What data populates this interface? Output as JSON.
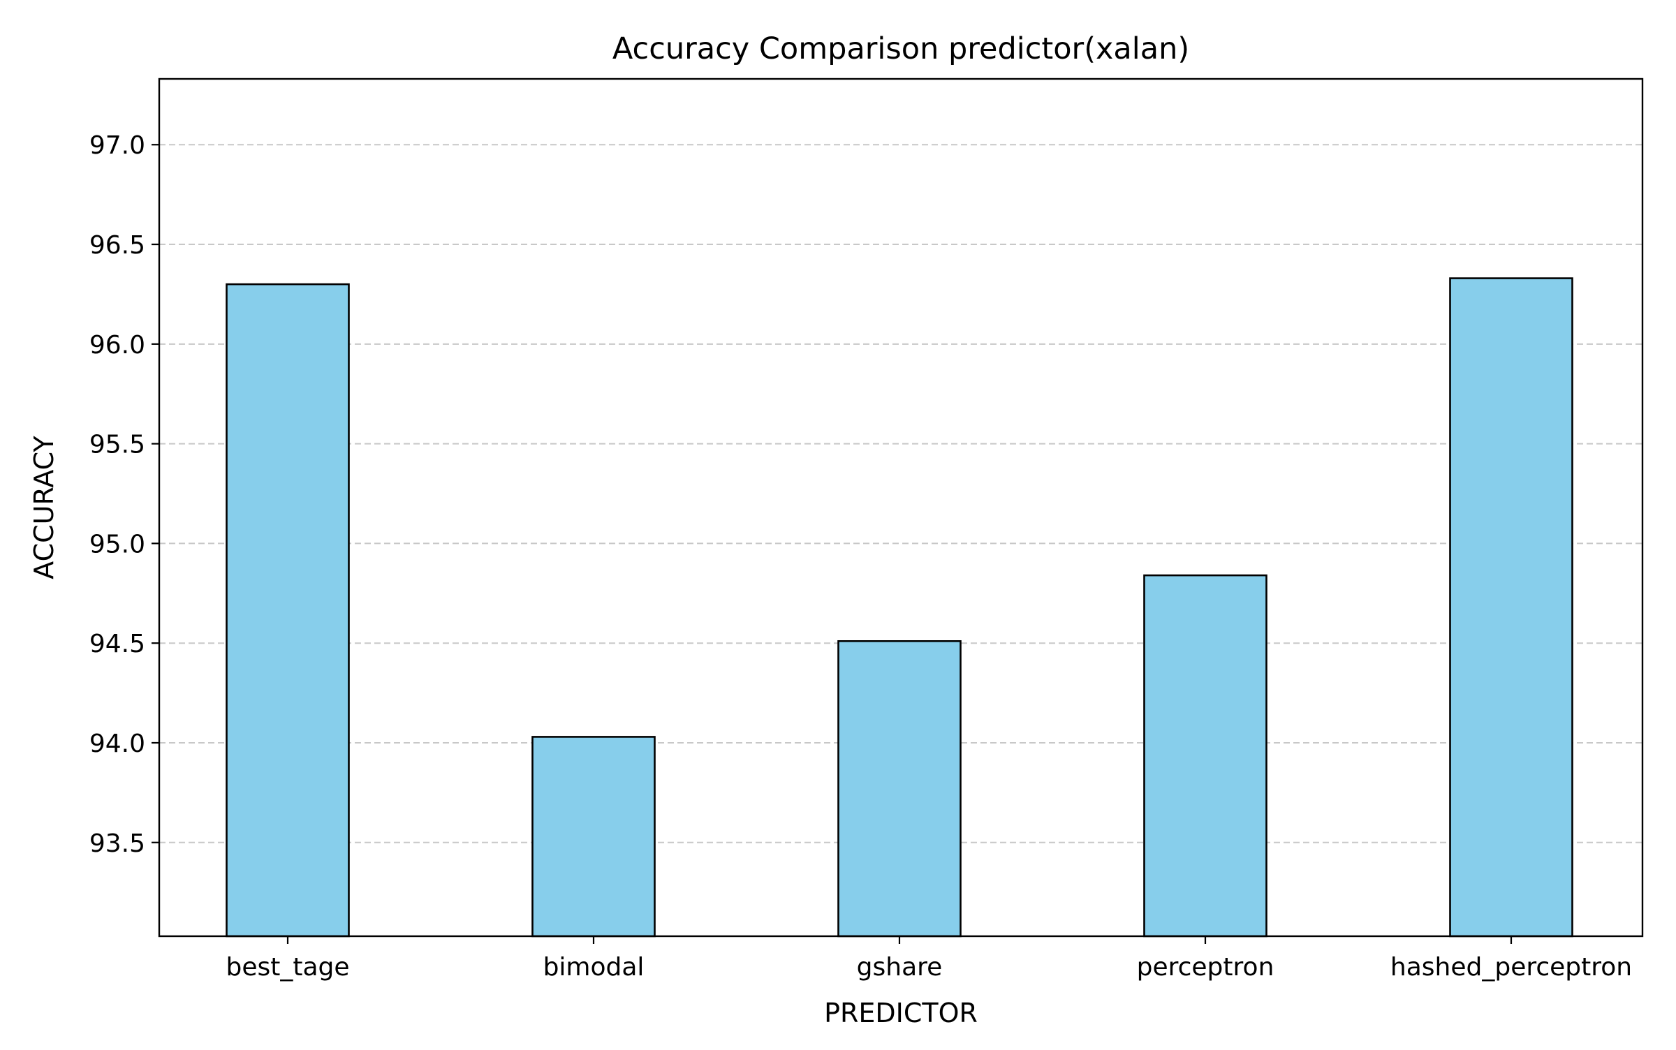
{
  "chart_data": {
    "type": "bar",
    "title": "Accuracy Comparison predictor(xalan)",
    "xlabel": "PREDICTOR",
    "ylabel": "ACCURACY",
    "categories": [
      "best_tage",
      "bimodal",
      "gshare",
      "perceptron",
      "hashed_perceptron"
    ],
    "values": [
      96.3,
      94.03,
      94.51,
      94.84,
      96.33
    ],
    "ylim": [
      93.03,
      97.33
    ],
    "yticks": [
      93.5,
      94.0,
      94.5,
      95.0,
      95.5,
      96.0,
      96.5,
      97.0
    ],
    "ytick_labels": [
      "93.5",
      "94.0",
      "94.5",
      "95.0",
      "95.5",
      "96.0",
      "96.5",
      "97.0"
    ],
    "grid": {
      "axis": "y",
      "style": "dashed",
      "color": "#c8c8c8"
    },
    "colors": {
      "bar_fill": "#87ceeb",
      "bar_edge": "#000000",
      "axis": "#000000"
    }
  }
}
